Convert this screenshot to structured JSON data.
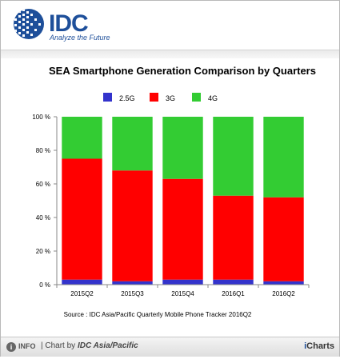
{
  "logo": {
    "name": "IDC",
    "tagline": "Analyze the Future"
  },
  "footer": {
    "info_label": "INFO",
    "credit_prefix": "| Chart by",
    "credit_owner": "IDC Asia/Pacific",
    "brand_prefix": "i",
    "brand_suffix": "Charts"
  },
  "colors": {
    "2.5G": "#3333cc",
    "3G": "#ff0000",
    "4G": "#33cc33"
  },
  "chart_data": {
    "type": "bar",
    "stacked": true,
    "title": "SEA Smartphone Generation Comparison by Quarters",
    "source": "Source : IDC Asia/Pacific Quarterly Mobile Phone Tracker 2016Q2",
    "categories": [
      "2015Q2",
      "2015Q3",
      "2015Q4",
      "2016Q1",
      "2016Q2"
    ],
    "series": [
      {
        "name": "2.5G",
        "color": "#3333cc",
        "values": [
          3,
          2,
          3,
          3,
          2
        ]
      },
      {
        "name": "3G",
        "color": "#ff0000",
        "values": [
          72,
          66,
          60,
          50,
          50
        ]
      },
      {
        "name": "4G",
        "color": "#33cc33",
        "values": [
          25,
          32,
          37,
          47,
          48
        ]
      }
    ],
    "ylim": [
      0,
      100
    ],
    "yticks": [
      "0 %",
      "20 %",
      "40 %",
      "60 %",
      "80 %",
      "100 %"
    ],
    "legend_position": "top",
    "grid": false
  }
}
